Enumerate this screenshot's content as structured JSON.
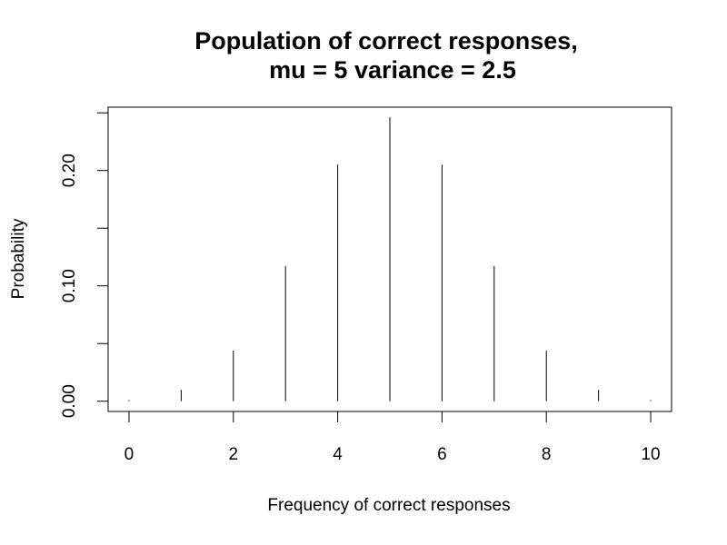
{
  "chart_data": {
    "type": "bar",
    "style": "needle",
    "title_lines": [
      "Population of correct responses,",
      "mu = 5 variance = 2.5"
    ],
    "xlabel": "Frequency of correct responses",
    "ylabel": "Probability",
    "x": [
      0,
      1,
      2,
      3,
      4,
      5,
      6,
      7,
      8,
      9,
      10
    ],
    "values": [
      0.001,
      0.0098,
      0.0439,
      0.1172,
      0.2051,
      0.2461,
      0.2051,
      0.1172,
      0.0439,
      0.0098,
      0.001
    ],
    "xlim": [
      -0.4,
      10.4
    ],
    "ylim": [
      -0.0089,
      0.2549
    ],
    "x_ticks": [
      0,
      2,
      4,
      6,
      8,
      10
    ],
    "x_tick_labels": [
      "0",
      "2",
      "4",
      "6",
      "8",
      "10"
    ],
    "y_ticks": [
      0.0,
      0.05,
      0.1,
      0.15,
      0.2,
      0.25
    ],
    "y_tick_labels": [
      "0.00",
      "",
      "0.10",
      "",
      "0.20",
      ""
    ],
    "grid": false,
    "box": true,
    "bar_color": "#000000"
  }
}
